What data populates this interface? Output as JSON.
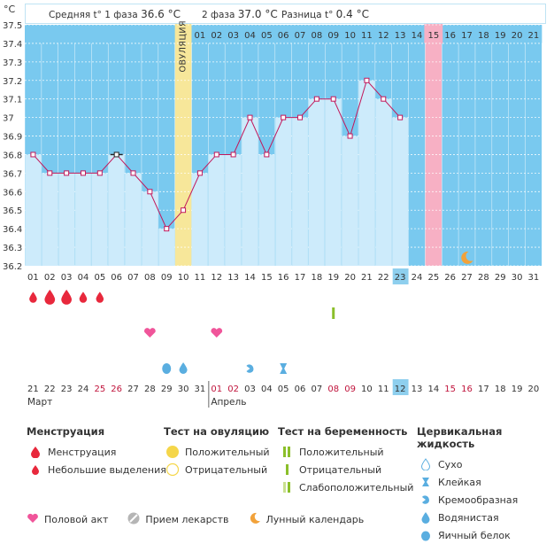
{
  "header": {
    "temp_unit": "°C",
    "phase1_label": "Средняя t° 1 фаза",
    "phase1_value": "36.6 °C",
    "phase2_label": "2 фаза",
    "phase2_value": "37.0 °C",
    "diff_label": "Разница t°",
    "diff_value": "0.4 °C"
  },
  "ovulation_label": "ОВУЛЯЦИЯ",
  "chart_data": {
    "type": "line",
    "title": "",
    "ylabel": "°C",
    "ylim": [
      36.2,
      37.5
    ],
    "y_ticks": [
      "36.2",
      "36.3",
      "36.4",
      "36.5",
      "36.6",
      "36.7",
      "36.8",
      "36.9",
      "37",
      "37.1",
      "37.2",
      "37.3",
      "37.4",
      "37.5"
    ],
    "cycle_days": [
      "01",
      "02",
      "03",
      "04",
      "05",
      "06",
      "07",
      "08",
      "09",
      "10",
      "11",
      "12",
      "13",
      "14",
      "15",
      "16",
      "17",
      "18",
      "19",
      "20",
      "21",
      "22",
      "23",
      "24",
      "25",
      "26",
      "27",
      "28",
      "29",
      "30",
      "31"
    ],
    "top_day_labels": [
      "01",
      "02",
      "03",
      "04",
      "05",
      "06",
      "07",
      "08",
      "09",
      "10",
      "11",
      "12",
      "13",
      "14",
      "15",
      "16",
      "17",
      "18",
      "19",
      "20",
      "21"
    ],
    "dates": [
      "21",
      "22",
      "23",
      "24",
      "25",
      "26",
      "27",
      "28",
      "29",
      "30",
      "31",
      "01",
      "02",
      "03",
      "04",
      "05",
      "06",
      "07",
      "08",
      "09",
      "10",
      "11",
      "12",
      "13",
      "14",
      "15",
      "16",
      "17",
      "18",
      "19",
      "20"
    ],
    "date_colors": [
      "#333",
      "#333",
      "#333",
      "#333",
      "#c0143c",
      "#c0143c",
      "#333",
      "#333",
      "#333",
      "#333",
      "#333",
      "#c0143c",
      "#c0143c",
      "#333",
      "#333",
      "#333",
      "#333",
      "#333",
      "#c0143c",
      "#c0143c",
      "#333",
      "#333",
      "#333",
      "#333",
      "#333",
      "#c0143c",
      "#c0143c",
      "#333",
      "#333",
      "#333",
      "#333"
    ],
    "month_labels": [
      {
        "day": 1,
        "label": "Март"
      },
      {
        "day": 12,
        "label": "Апрель"
      }
    ],
    "today_cycle_day": 23,
    "today_date_index": 23,
    "today_date_label": "12",
    "temperatures": [
      36.8,
      36.7,
      36.7,
      36.7,
      36.7,
      36.8,
      36.7,
      36.6,
      36.4,
      36.5,
      36.7,
      36.8,
      36.8,
      37.0,
      36.8,
      37.0,
      37.0,
      37.1,
      37.1,
      36.9,
      37.2,
      37.1,
      37.0
    ],
    "highlight_day": 6,
    "ovulation_day": 10,
    "expected_period_day": 25,
    "moon_day": 27,
    "future_from_day": 24,
    "menstruation": [
      1,
      2,
      3,
      4,
      5
    ],
    "menstruation_big": [
      2,
      3
    ],
    "intercourse": [
      8,
      12
    ],
    "pregnancy_test_negative": [
      19
    ],
    "cervical": [
      {
        "day": 9,
        "kind": "egg-white"
      },
      {
        "day": 10,
        "kind": "watery"
      },
      {
        "day": 14,
        "kind": "creamy"
      },
      {
        "day": 16,
        "kind": "sticky"
      }
    ],
    "colors": {
      "line": "#c2185b",
      "fill": "#cdebfb",
      "future": "#79c9ef",
      "ovulation": "#f7e79a",
      "period": "#f7b0c4",
      "blue": "#5aaee0",
      "drop": "#e8283c",
      "heart": "#f0559a",
      "today": "#8ecfee"
    }
  },
  "legend": {
    "menstruation": {
      "title": "Менструация",
      "items": [
        "Менструация",
        "Небольшие выделения"
      ]
    },
    "ovulation_test": {
      "title": "Тест на овуляцию",
      "items": [
        "Положительный",
        "Отрицательный"
      ]
    },
    "pregnancy_test": {
      "title": "Тест на беременность",
      "items": [
        "Положительный",
        "Отрицательный",
        "Слабоположительный"
      ]
    },
    "cervical": {
      "title": "Цервикальная жидкость",
      "items": [
        "Сухо",
        "Клейкая",
        "Кремообразная",
        "Водянистая",
        "Яичный белок"
      ]
    }
  },
  "bottom_legend": [
    "Половой акт",
    "Прием лекарств",
    "Лунный календарь"
  ]
}
